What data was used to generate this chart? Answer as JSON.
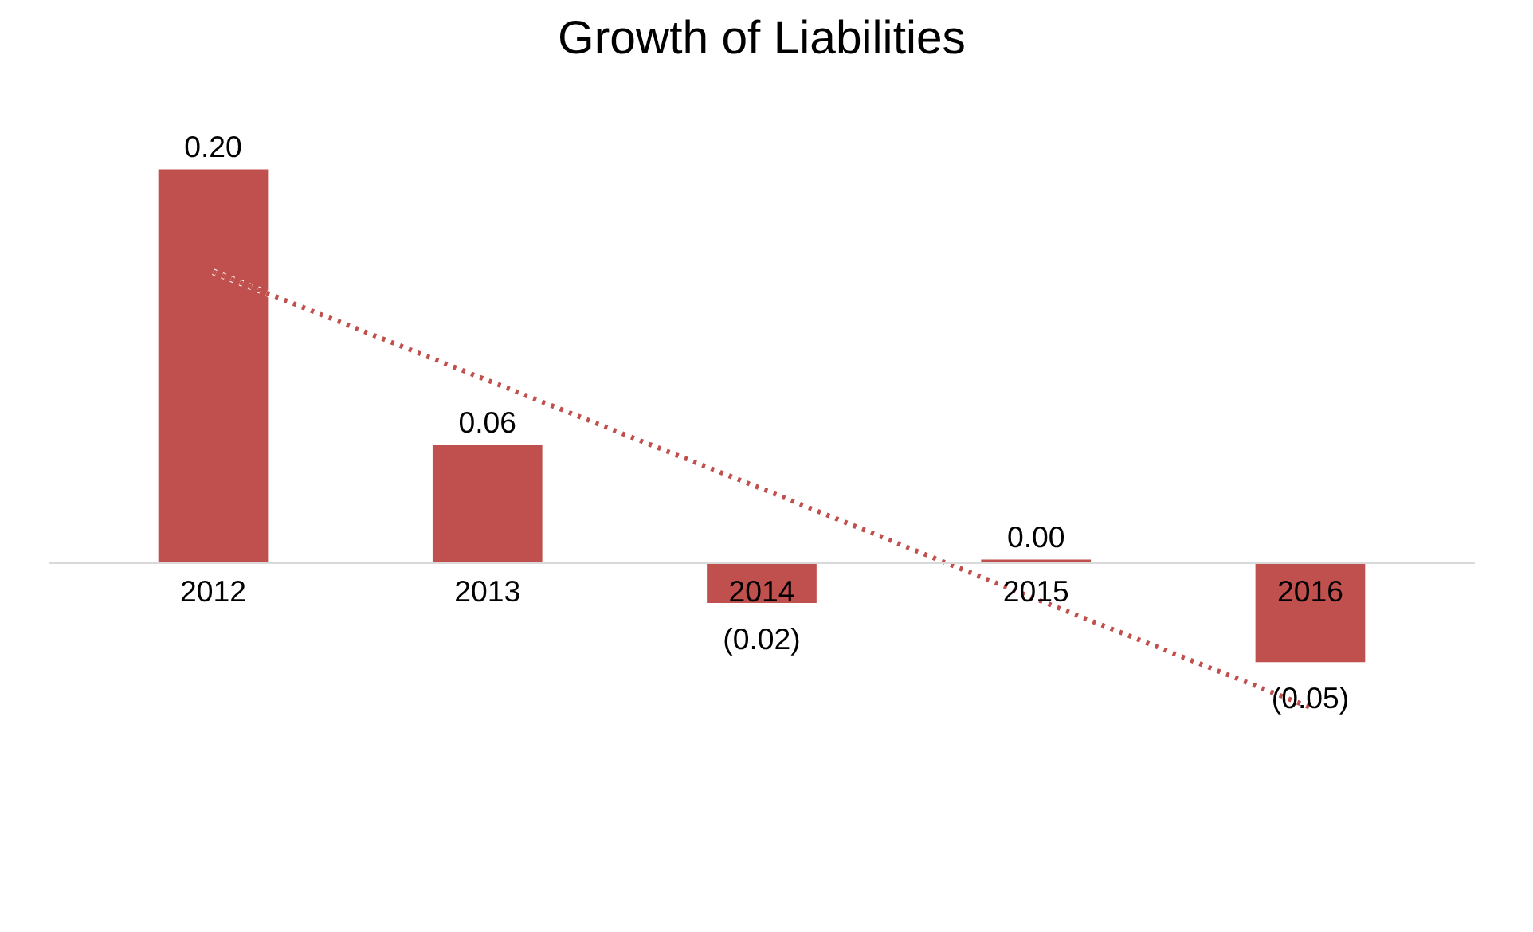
{
  "chart_data": {
    "type": "bar",
    "title": "Growth of Liabilities",
    "categories": [
      "2012",
      "2013",
      "2014",
      "2015",
      "2016"
    ],
    "series": [
      {
        "color": "#c0504d",
        "values": [
          0.2,
          0.06,
          -0.02,
          0.002,
          -0.05
        ],
        "value_labels": [
          "0.20",
          "0.06",
          "(0.02)",
          "0.00",
          "(0.05)"
        ]
      },
      {
        "type": "line",
        "color": "#c0504d",
        "line_style": "dotted",
        "values": [
          0.148,
          0.093,
          0.038,
          -0.018,
          -0.073
        ]
      }
    ],
    "grid": false
  }
}
